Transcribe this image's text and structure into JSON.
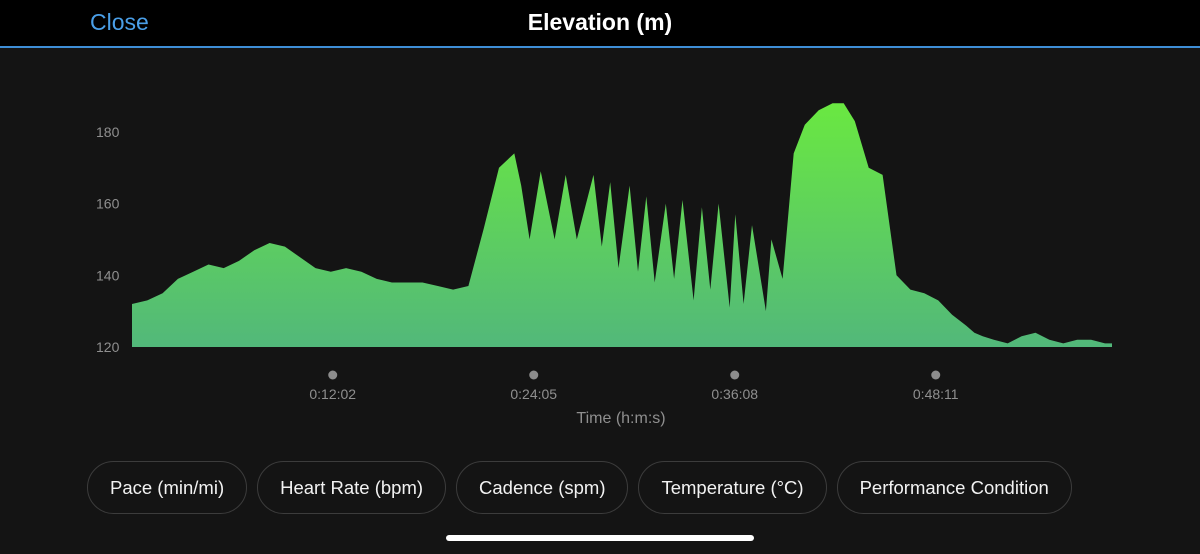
{
  "header": {
    "close_label": "Close",
    "title": "Elevation (m)",
    "accent_color": "#4a9fe8"
  },
  "chart_data": {
    "type": "area",
    "xlabel": "Time (h:m:s)",
    "ylabel": "",
    "ylim": [
      120,
      190
    ],
    "yticks": [
      120,
      140,
      160,
      180
    ],
    "xlim": [
      0,
      3525
    ],
    "xticks": [
      {
        "t": 722,
        "label": "0:12:02"
      },
      {
        "t": 1445,
        "label": "0:24:05"
      },
      {
        "t": 2168,
        "label": "0:36:08"
      },
      {
        "t": 2891,
        "label": "0:48:11"
      }
    ],
    "fill_top_color": "#6ae841",
    "fill_bottom_color": "#52b87a",
    "x": [
      0,
      55,
      110,
      165,
      220,
      275,
      330,
      385,
      440,
      495,
      550,
      605,
      660,
      715,
      770,
      825,
      880,
      935,
      990,
      1045,
      1100,
      1155,
      1210,
      1265,
      1320,
      1375,
      1400,
      1430,
      1470,
      1520,
      1560,
      1600,
      1660,
      1690,
      1720,
      1750,
      1790,
      1820,
      1850,
      1880,
      1920,
      1950,
      1980,
      2020,
      2050,
      2080,
      2110,
      2150,
      2170,
      2200,
      2230,
      2280,
      2300,
      2340,
      2380,
      2420,
      2470,
      2520,
      2560,
      2600,
      2650,
      2700,
      2750,
      2800,
      2850,
      2900,
      2950,
      3000,
      3030,
      3060,
      3100,
      3150,
      3200,
      3250,
      3300,
      3350,
      3400,
      3450,
      3500,
      3525
    ],
    "y": [
      132,
      133,
      135,
      139,
      141,
      143,
      142,
      144,
      147,
      149,
      148,
      145,
      142,
      141,
      142,
      141,
      139,
      138,
      138,
      138,
      137,
      136,
      137,
      153,
      170,
      174,
      165,
      150,
      169,
      150,
      168,
      150,
      168,
      148,
      166,
      142,
      165,
      141,
      162,
      138,
      160,
      139,
      161,
      133,
      159,
      136,
      160,
      131,
      157,
      132,
      154,
      130,
      150,
      139,
      174,
      182,
      186,
      188,
      188,
      183,
      170,
      168,
      140,
      136,
      135,
      133,
      129,
      126,
      124,
      123,
      122,
      121,
      123,
      124,
      122,
      121,
      122,
      122,
      121,
      121
    ]
  },
  "metric_tabs": [
    {
      "label": "Pace (min/mi)"
    },
    {
      "label": "Heart Rate (bpm)"
    },
    {
      "label": "Cadence (spm)"
    },
    {
      "label": "Temperature (°C)"
    },
    {
      "label": "Performance Condition"
    }
  ]
}
